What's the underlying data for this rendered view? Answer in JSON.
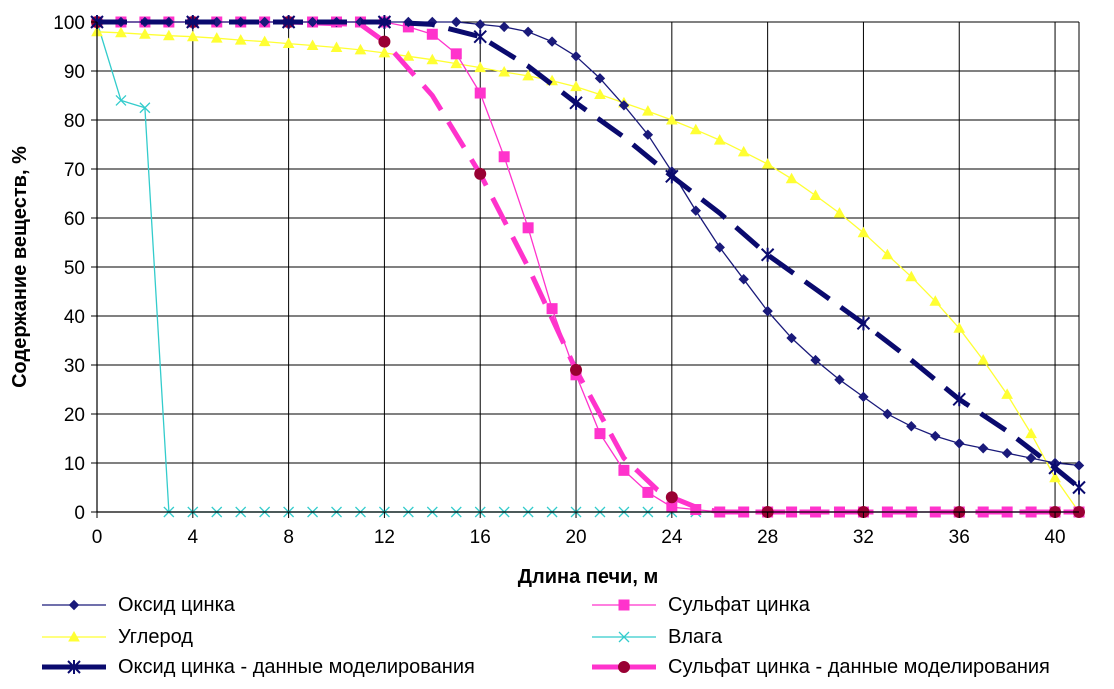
{
  "chart_data": {
    "type": "line",
    "title": "",
    "xlabel": "Длина печи, м",
    "ylabel": "Содержание веществ, %",
    "xlim": [
      0,
      41
    ],
    "ylim": [
      0,
      100
    ],
    "xticks": [
      0,
      4,
      8,
      12,
      16,
      20,
      24,
      28,
      32,
      36,
      40
    ],
    "yticks": [
      0,
      10,
      20,
      30,
      40,
      50,
      60,
      70,
      80,
      90,
      100
    ],
    "grid": true,
    "legend_position": "bottom",
    "series": [
      {
        "name": "Оксид цинка",
        "color": "#1a1a7a",
        "style": "solid-thin",
        "marker": "diamond",
        "x": [
          0,
          1,
          2,
          3,
          4,
          5,
          6,
          7,
          8,
          9,
          10,
          11,
          12,
          13,
          14,
          15,
          16,
          17,
          18,
          19,
          20,
          21,
          22,
          23,
          24,
          25,
          26,
          27,
          28,
          29,
          30,
          31,
          32,
          33,
          34,
          35,
          36,
          37,
          38,
          39,
          40,
          41
        ],
        "y": [
          100,
          100,
          100,
          100,
          100,
          100,
          100,
          100,
          100,
          100,
          100,
          100,
          100,
          100,
          100,
          100,
          99.5,
          99,
          98,
          96,
          93,
          88.5,
          83,
          77,
          69.5,
          61.5,
          54,
          47.5,
          41,
          35.5,
          31,
          27,
          23.5,
          20,
          17.5,
          15.5,
          14,
          13,
          12,
          11,
          10,
          9.5
        ]
      },
      {
        "name": "Сульфат цинка",
        "color": "#ff33cc",
        "style": "solid-thin",
        "marker": "square",
        "x": [
          0,
          1,
          2,
          3,
          4,
          5,
          6,
          7,
          8,
          9,
          10,
          11,
          12,
          13,
          14,
          15,
          16,
          17,
          18,
          19,
          20,
          21,
          22,
          23,
          24,
          25,
          26,
          27,
          28,
          29,
          30,
          31,
          32,
          33,
          34,
          35,
          36,
          37,
          38,
          39,
          40,
          41
        ],
        "y": [
          100,
          100,
          100,
          100,
          100,
          100,
          100,
          100,
          100,
          100,
          100,
          100,
          100,
          99,
          97.5,
          93.5,
          85.5,
          72.5,
          58,
          41.5,
          28,
          16,
          8.5,
          4,
          1,
          0.5,
          0,
          0,
          0,
          0,
          0,
          0,
          0,
          0,
          0,
          0,
          0,
          0,
          0,
          0,
          0,
          0
        ]
      },
      {
        "name": "Углерод",
        "color": "#ffff33",
        "style": "solid-thin",
        "marker": "triangle",
        "x": [
          0,
          1,
          2,
          3,
          4,
          5,
          6,
          7,
          8,
          9,
          10,
          11,
          12,
          13,
          14,
          15,
          16,
          17,
          18,
          19,
          20,
          21,
          22,
          23,
          24,
          25,
          26,
          27,
          28,
          29,
          30,
          31,
          32,
          33,
          34,
          35,
          36,
          37,
          38,
          39,
          40,
          41
        ],
        "y": [
          98,
          97.8,
          97.5,
          97.2,
          97,
          96.7,
          96.3,
          96,
          95.6,
          95.2,
          94.8,
          94.3,
          93.7,
          93,
          92.3,
          91.5,
          90.7,
          89.8,
          89,
          88,
          86.8,
          85.2,
          83.5,
          81.8,
          80,
          78,
          75.9,
          73.5,
          71,
          68,
          64.6,
          61,
          57,
          52.5,
          48,
          43,
          37.5,
          31,
          24,
          16,
          7,
          0
        ]
      },
      {
        "name": "Влага",
        "color": "#33cccc",
        "style": "solid-thin",
        "marker": "x",
        "x": [
          0,
          1,
          2,
          3,
          4,
          5,
          6,
          7,
          8,
          9,
          10,
          11,
          12,
          13,
          14,
          15,
          16,
          17,
          18,
          19,
          20,
          21,
          22,
          23,
          24,
          25,
          26,
          27,
          28,
          29,
          30,
          31,
          32,
          33,
          34,
          35,
          36,
          37,
          38,
          39,
          40,
          41
        ],
        "y": [
          100,
          84,
          82.5,
          0,
          0,
          0,
          0,
          0,
          0,
          0,
          0,
          0,
          0,
          0,
          0,
          0,
          0,
          0,
          0,
          0,
          0,
          0,
          0,
          0,
          0,
          0,
          0,
          0,
          0,
          0,
          0,
          0,
          0,
          0,
          0,
          0,
          0,
          0,
          0,
          0,
          0,
          0
        ]
      },
      {
        "name": "Оксид цинка - данные моделирования",
        "color": "#0a0a6e",
        "style": "dashed-thick",
        "marker": "asterisk",
        "x": [
          0,
          4,
          8,
          12,
          14,
          16,
          18,
          20,
          22,
          24,
          26,
          28,
          30,
          32,
          34,
          36,
          38,
          40,
          41
        ],
        "y": [
          100,
          100,
          100,
          100,
          99.5,
          97,
          91,
          83.5,
          76.5,
          68.5,
          61,
          52.5,
          45.5,
          38.5,
          31,
          23,
          16.5,
          9,
          5
        ]
      },
      {
        "name": "Сульфат цинка - данные моделирования",
        "color": "#ff33cc",
        "style": "dashed-thick",
        "marker": "circle",
        "markerColor": "#990033",
        "x": [
          0,
          4,
          8,
          11,
          12,
          14,
          16,
          18,
          20,
          22,
          23.4,
          24,
          25,
          26,
          28,
          32,
          36,
          40,
          41
        ],
        "y": [
          100,
          100,
          100,
          99.5,
          96,
          85,
          69,
          50,
          29,
          11,
          4.5,
          3,
          1,
          0,
          0,
          0,
          0,
          0,
          0
        ]
      }
    ]
  }
}
